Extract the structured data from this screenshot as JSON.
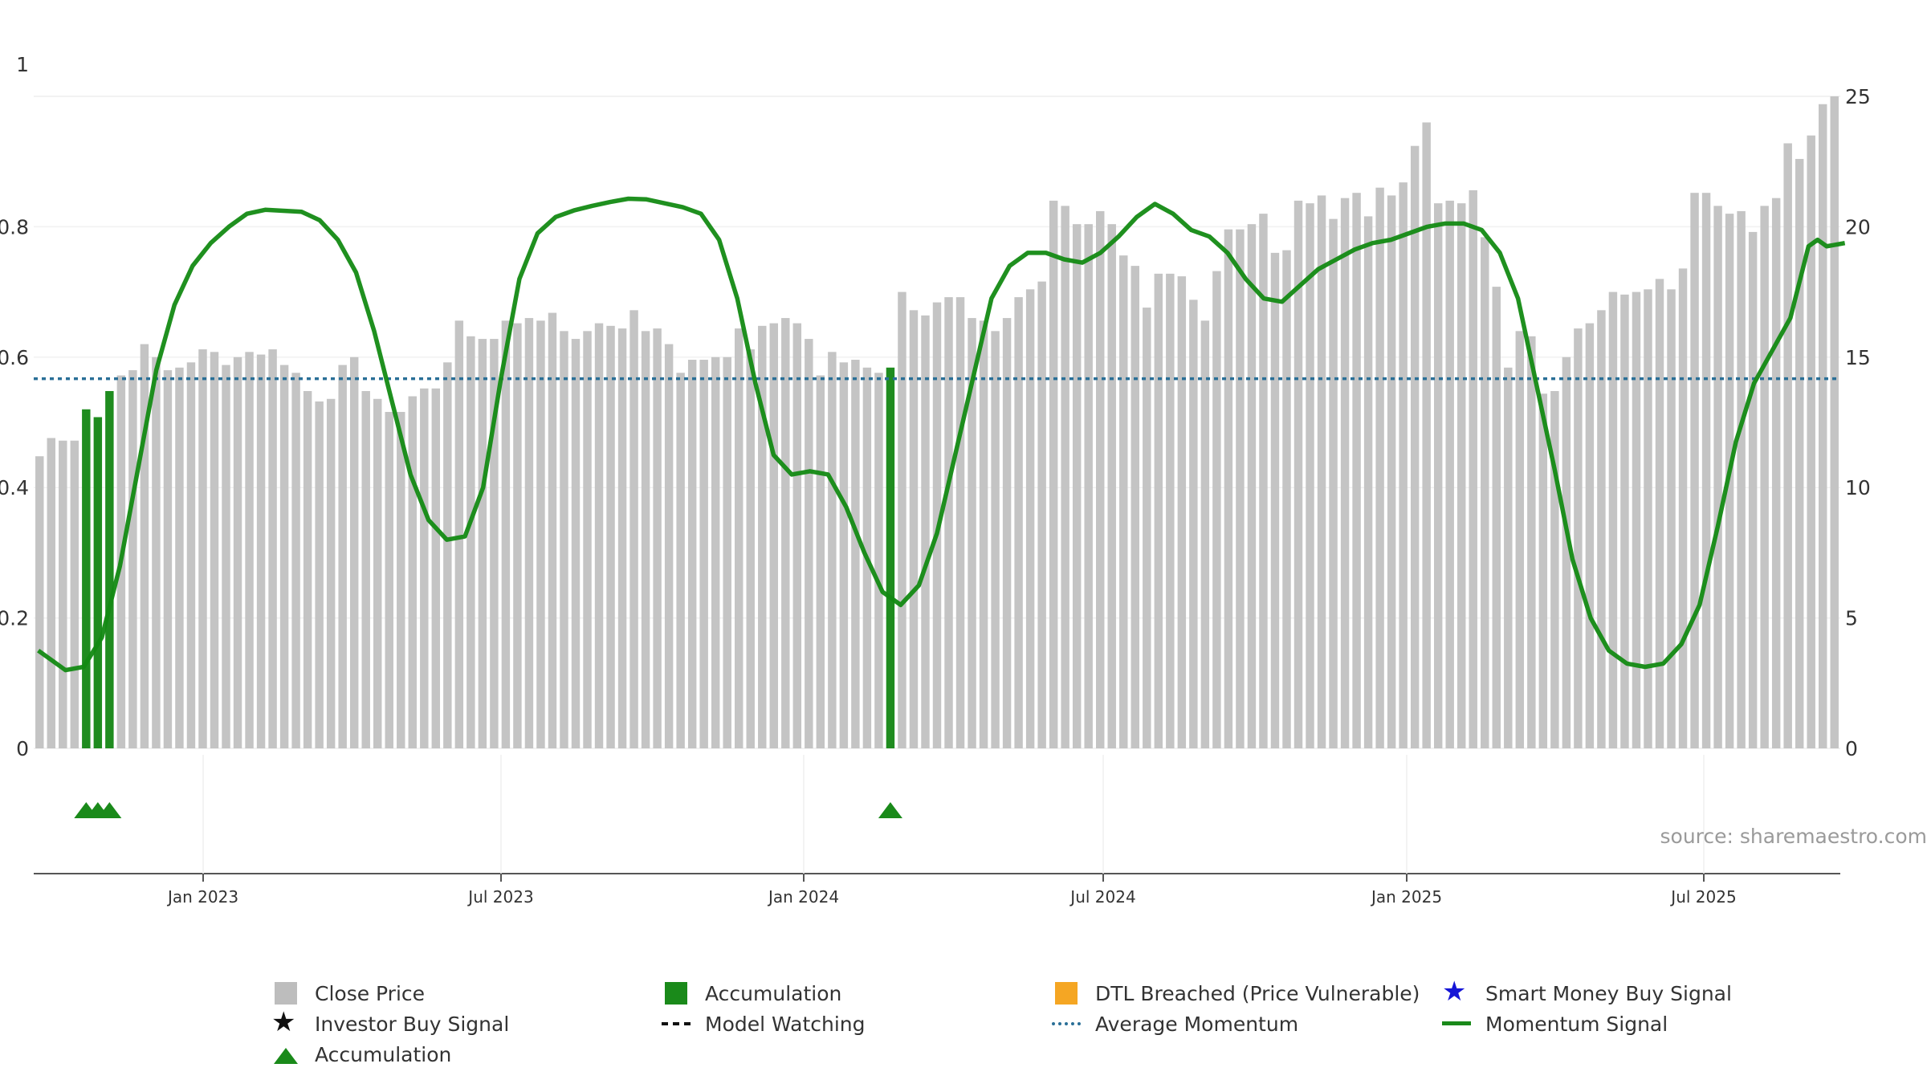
{
  "chart_data": {
    "type": "bar+line",
    "source": "source: sharemaestro.com",
    "left_axis": {
      "ticks": [
        "0",
        "0.2",
        "0.4",
        "0.6",
        "0.8",
        "1"
      ],
      "range": [
        0,
        1
      ]
    },
    "right_axis": {
      "ticks": [
        "0",
        "5",
        "10",
        "15",
        "20",
        "25"
      ],
      "range": [
        0,
        25
      ]
    },
    "x_axis": {
      "ticks": [
        "Jan 2023",
        "Jul 2023",
        "Jan 2024",
        "Jul 2024",
        "Jan 2025",
        "Jul 2025"
      ]
    },
    "average_momentum": 0.567,
    "close_prices": [
      11.2,
      11.9,
      11.8,
      11.8,
      13.0,
      12.7,
      13.7,
      14.3,
      14.5,
      15.5,
      15.0,
      14.5,
      14.6,
      14.8,
      15.3,
      15.2,
      14.7,
      15.0,
      15.2,
      15.1,
      15.3,
      14.7,
      14.4,
      13.7,
      13.3,
      13.4,
      14.7,
      15.0,
      13.7,
      13.4,
      12.9,
      12.9,
      13.5,
      13.8,
      13.8,
      14.8,
      16.4,
      15.8,
      15.7,
      15.7,
      16.4,
      16.3,
      16.5,
      16.4,
      16.7,
      16.0,
      15.7,
      16.0,
      16.3,
      16.2,
      16.1,
      16.8,
      16.0,
      16.1,
      15.5,
      14.4,
      14.9,
      14.9,
      15.0,
      15.0,
      16.1,
      15.3,
      16.2,
      16.3,
      16.5,
      16.3,
      15.7,
      14.3,
      15.2,
      14.8,
      14.9,
      14.6,
      14.4,
      14.6,
      17.5,
      16.8,
      16.6,
      17.1,
      17.3,
      17.3,
      16.5,
      16.4,
      16.0,
      16.5,
      17.3,
      17.6,
      17.9,
      21.0,
      20.8,
      20.1,
      20.1,
      20.6,
      20.1,
      18.9,
      18.5,
      16.9,
      18.2,
      18.2,
      18.1,
      17.2,
      16.4,
      18.3,
      19.9,
      19.9,
      20.1,
      20.5,
      19.0,
      19.1,
      21.0,
      20.9,
      21.2,
      20.3,
      21.1,
      21.3,
      20.4,
      21.5,
      21.2,
      21.7,
      23.1,
      24.0,
      20.9,
      21.0,
      20.9,
      21.4,
      19.6,
      17.7,
      14.6,
      16.0,
      15.8,
      13.6,
      13.7,
      15.0,
      16.1,
      16.3,
      16.8,
      17.5,
      17.4,
      17.5,
      17.6,
      18.0,
      17.6,
      18.4,
      21.3,
      21.3,
      20.8,
      20.5,
      20.6,
      19.8,
      20.8,
      21.1,
      23.2,
      22.6,
      23.5,
      24.7,
      25.0
    ],
    "accumulation_bars": [
      4,
      5,
      6,
      73
    ],
    "accumulation_markers": [
      4,
      5,
      6,
      73
    ],
    "momentum_signal": [
      [
        0,
        0.15
      ],
      [
        3,
        0.12
      ],
      [
        5,
        0.125
      ],
      [
        7,
        0.17
      ],
      [
        9,
        0.28
      ],
      [
        11,
        0.43
      ],
      [
        13,
        0.58
      ],
      [
        15,
        0.68
      ],
      [
        17,
        0.74
      ],
      [
        19,
        0.775
      ],
      [
        21,
        0.8
      ],
      [
        23,
        0.82
      ],
      [
        25,
        0.826
      ],
      [
        29,
        0.823
      ],
      [
        31,
        0.81
      ],
      [
        33,
        0.78
      ],
      [
        35,
        0.73
      ],
      [
        37,
        0.64
      ],
      [
        39,
        0.53
      ],
      [
        41,
        0.42
      ],
      [
        43,
        0.35
      ],
      [
        45,
        0.32
      ],
      [
        47,
        0.325
      ],
      [
        49,
        0.4
      ],
      [
        51,
        0.57
      ],
      [
        53,
        0.72
      ],
      [
        55,
        0.79
      ],
      [
        57,
        0.815
      ],
      [
        59,
        0.825
      ],
      [
        61,
        0.832
      ],
      [
        63,
        0.838
      ],
      [
        65,
        0.843
      ],
      [
        67,
        0.842
      ],
      [
        69,
        0.836
      ],
      [
        71,
        0.83
      ],
      [
        73,
        0.82
      ],
      [
        75,
        0.78
      ],
      [
        77,
        0.69
      ],
      [
        79,
        0.56
      ],
      [
        81,
        0.45
      ],
      [
        83,
        0.42
      ],
      [
        85,
        0.425
      ],
      [
        87,
        0.42
      ],
      [
        89,
        0.37
      ],
      [
        91,
        0.3
      ],
      [
        93,
        0.24
      ],
      [
        95,
        0.22
      ],
      [
        97,
        0.25
      ],
      [
        99,
        0.33
      ],
      [
        101,
        0.45
      ],
      [
        103,
        0.57
      ],
      [
        105,
        0.69
      ],
      [
        107,
        0.74
      ],
      [
        109,
        0.76
      ],
      [
        111,
        0.76
      ],
      [
        113,
        0.75
      ],
      [
        115,
        0.745
      ],
      [
        117,
        0.76
      ],
      [
        119,
        0.785
      ],
      [
        121,
        0.815
      ],
      [
        123,
        0.835
      ],
      [
        125,
        0.82
      ],
      [
        127,
        0.795
      ],
      [
        129,
        0.785
      ],
      [
        131,
        0.76
      ],
      [
        133,
        0.72
      ],
      [
        135,
        0.69
      ],
      [
        137,
        0.685
      ],
      [
        139,
        0.71
      ],
      [
        141,
        0.735
      ],
      [
        143,
        0.75
      ],
      [
        145,
        0.765
      ],
      [
        147,
        0.775
      ],
      [
        149,
        0.78
      ],
      [
        151,
        0.79
      ],
      [
        153,
        0.8
      ],
      [
        155,
        0.805
      ],
      [
        157,
        0.805
      ],
      [
        159,
        0.795
      ],
      [
        161,
        0.76
      ],
      [
        163,
        0.69
      ],
      [
        165,
        0.56
      ],
      [
        167,
        0.43
      ],
      [
        169,
        0.29
      ],
      [
        171,
        0.2
      ],
      [
        173,
        0.15
      ],
      [
        175,
        0.13
      ],
      [
        177,
        0.125
      ],
      [
        179,
        0.13
      ],
      [
        181,
        0.16
      ],
      [
        183,
        0.22
      ],
      [
        185,
        0.34
      ],
      [
        187,
        0.47
      ],
      [
        189,
        0.56
      ],
      [
        191,
        0.61
      ],
      [
        193,
        0.66
      ],
      [
        195,
        0.77
      ],
      [
        196,
        0.78
      ],
      [
        197,
        0.77
      ],
      [
        199,
        0.775
      ]
    ],
    "legend": [
      {
        "label": "Close Price",
        "symbol": "square",
        "color": "#bdbdbd"
      },
      {
        "label": "Accumulation",
        "symbol": "square",
        "color": "#1a8a1a"
      },
      {
        "label": "DTL Breached (Price Vulnerable)",
        "symbol": "square",
        "color": "#f5a623"
      },
      {
        "label": "Smart Money Buy Signal",
        "symbol": "star",
        "color": "#1515d6"
      },
      {
        "label": "Investor Buy Signal",
        "symbol": "star",
        "color": "#111111"
      },
      {
        "label": "Model Watching",
        "symbol": "dash",
        "color": "#111111"
      },
      {
        "label": "Average Momentum",
        "symbol": "dot",
        "color": "#2a6f97"
      },
      {
        "label": "Momentum Signal",
        "symbol": "line",
        "color": "#1a8a1a"
      },
      {
        "label": "Accumulation",
        "symbol": "triangle",
        "color": "#1a8a1a"
      }
    ]
  }
}
